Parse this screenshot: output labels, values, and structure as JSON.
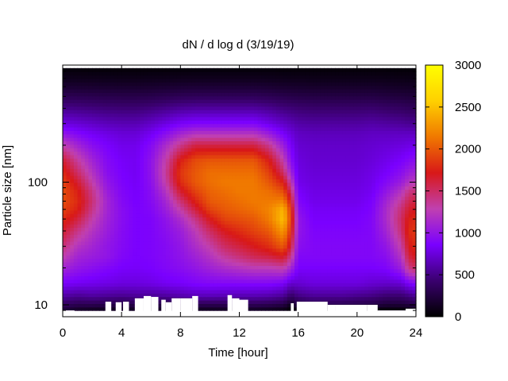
{
  "chart_data": {
    "type": "heatmap",
    "title": "dN / d log d (3/19/19)",
    "xlabel": "Time [hour]",
    "ylabel": "Particle size [nm]",
    "xlim": [
      0,
      24
    ],
    "ylim": [
      8,
      900
    ],
    "y_scale": "log",
    "grid": false,
    "x_ticks": [
      0,
      4,
      8,
      12,
      16,
      20,
      24
    ],
    "x_tick_labels": [
      "0",
      "4",
      "8",
      "12",
      "16",
      "20",
      "24"
    ],
    "y_ticks": [
      10,
      100
    ],
    "y_tick_labels": [
      "10",
      "100"
    ],
    "colorbar": {
      "range": [
        0,
        3000
      ],
      "ticks": [
        0,
        500,
        1000,
        1500,
        2000,
        2500,
        3000
      ],
      "tick_labels": [
        "0",
        "500",
        "1000",
        "1500",
        "2000",
        "2500",
        "3000"
      ],
      "colormap": [
        "#000000",
        "#3a006e",
        "#7a00ff",
        "#c040b0",
        "#d81818",
        "#f07800",
        "#ffd000",
        "#ffff00"
      ]
    },
    "color_background": "#ffffff",
    "x": [
      0,
      1,
      2,
      3,
      4,
      5,
      6,
      7,
      8,
      9,
      10,
      11,
      12,
      13,
      14,
      15,
      15.5,
      16,
      17,
      18,
      19,
      20,
      21,
      22,
      23,
      23.5,
      24
    ],
    "diameters": [
      9,
      10,
      12,
      15,
      20,
      25,
      30,
      40,
      50,
      60,
      70,
      85,
      100,
      120,
      150,
      200,
      250,
      300,
      400,
      500,
      600,
      700,
      800,
      850
    ],
    "values": [
      [
        200,
        120,
        90,
        80,
        80,
        100,
        120,
        100,
        90,
        80,
        80,
        90,
        100,
        100,
        80,
        50,
        0,
        0,
        60,
        60,
        80,
        80,
        0,
        0,
        0,
        0,
        0
      ],
      [
        350,
        300,
        300,
        280,
        260,
        280,
        260,
        250,
        280,
        300,
        300,
        300,
        300,
        320,
        300,
        250,
        120,
        250,
        300,
        300,
        300,
        280,
        250,
        200,
        200,
        230,
        260
      ],
      [
        600,
        550,
        580,
        560,
        540,
        560,
        560,
        580,
        620,
        660,
        660,
        650,
        640,
        640,
        620,
        560,
        400,
        500,
        560,
        560,
        560,
        530,
        500,
        440,
        440,
        500,
        560
      ],
      [
        850,
        820,
        800,
        780,
        760,
        760,
        780,
        820,
        840,
        880,
        900,
        900,
        900,
        900,
        900,
        850,
        700,
        720,
        760,
        760,
        760,
        760,
        720,
        700,
        720,
        850,
        900
      ],
      [
        1100,
        1000,
        950,
        900,
        850,
        840,
        860,
        900,
        940,
        1000,
        1080,
        1150,
        1200,
        1250,
        1250,
        1300,
        1100,
        850,
        850,
        850,
        850,
        850,
        850,
        880,
        1050,
        1400,
        1500
      ],
      [
        1300,
        1100,
        1050,
        1000,
        900,
        860,
        880,
        920,
        980,
        1080,
        1200,
        1350,
        1450,
        1550,
        1600,
        1700,
        1400,
        900,
        900,
        900,
        900,
        900,
        900,
        950,
        1200,
        1600,
        1700
      ],
      [
        1450,
        1200,
        1100,
        1000,
        920,
        860,
        880,
        920,
        1000,
        1150,
        1300,
        1500,
        1600,
        1700,
        1800,
        2000,
        1600,
        950,
        900,
        900,
        900,
        900,
        900,
        1000,
        1300,
        1700,
        1800
      ],
      [
        1650,
        1400,
        1200,
        1050,
        930,
        860,
        880,
        950,
        1050,
        1250,
        1500,
        1700,
        1800,
        1900,
        2000,
        2300,
        1800,
        1000,
        880,
        880,
        880,
        880,
        900,
        1100,
        1450,
        1800,
        1850
      ],
      [
        1800,
        1600,
        1300,
        1080,
        940,
        860,
        880,
        980,
        1150,
        1400,
        1700,
        1900,
        1950,
        2000,
        2150,
        2500,
        1900,
        1000,
        850,
        850,
        850,
        850,
        900,
        1150,
        1500,
        1750,
        1800
      ],
      [
        1900,
        1750,
        1400,
        1100,
        940,
        860,
        900,
        1050,
        1300,
        1600,
        1900,
        2000,
        2050,
        2100,
        2200,
        2450,
        1850,
        950,
        830,
        830,
        830,
        830,
        880,
        1150,
        1450,
        1650,
        1700
      ],
      [
        1950,
        1800,
        1450,
        1100,
        920,
        850,
        920,
        1100,
        1450,
        1750,
        2000,
        2050,
        2100,
        2150,
        2150,
        2200,
        1700,
        900,
        800,
        800,
        800,
        800,
        860,
        1100,
        1350,
        1550,
        1600
      ],
      [
        1950,
        1750,
        1400,
        1050,
        900,
        840,
        940,
        1200,
        1650,
        1900,
        2050,
        2100,
        2150,
        2150,
        2100,
        1950,
        1500,
        850,
        780,
        780,
        780,
        780,
        820,
        1000,
        1200,
        1400,
        1450
      ],
      [
        1900,
        1650,
        1300,
        1000,
        880,
        830,
        960,
        1300,
        1800,
        2000,
        2100,
        2150,
        2150,
        2150,
        2000,
        1750,
        1300,
        800,
        760,
        760,
        760,
        760,
        800,
        920,
        1050,
        1200,
        1250
      ],
      [
        1800,
        1500,
        1200,
        950,
        860,
        820,
        980,
        1350,
        1850,
        2000,
        2100,
        2100,
        2100,
        2100,
        1900,
        1500,
        1100,
        780,
        740,
        740,
        740,
        740,
        780,
        850,
        950,
        1050,
        1100
      ],
      [
        1650,
        1350,
        1100,
        920,
        840,
        820,
        980,
        1300,
        1750,
        1950,
        2000,
        2000,
        2000,
        2000,
        1750,
        1300,
        950,
        760,
        720,
        720,
        720,
        720,
        750,
        800,
        860,
        920,
        960
      ],
      [
        1300,
        1100,
        950,
        860,
        800,
        800,
        920,
        1150,
        1400,
        1600,
        1600,
        1600,
        1600,
        1600,
        1400,
        1050,
        850,
        720,
        700,
        700,
        700,
        700,
        720,
        740,
        760,
        780,
        800
      ],
      [
        1000,
        900,
        830,
        780,
        740,
        740,
        820,
        950,
        1100,
        1200,
        1200,
        1200,
        1200,
        1200,
        1050,
        850,
        760,
        680,
        660,
        660,
        660,
        660,
        680,
        680,
        680,
        680,
        680
      ],
      [
        780,
        740,
        700,
        660,
        640,
        640,
        700,
        780,
        860,
        900,
        900,
        900,
        900,
        900,
        800,
        700,
        650,
        600,
        580,
        580,
        580,
        580,
        600,
        580,
        560,
        540,
        540
      ],
      [
        520,
        500,
        480,
        460,
        450,
        450,
        480,
        520,
        560,
        580,
        580,
        580,
        580,
        580,
        540,
        480,
        460,
        440,
        420,
        420,
        420,
        420,
        430,
        400,
        380,
        360,
        360
      ],
      [
        330,
        320,
        310,
        300,
        290,
        290,
        300,
        320,
        340,
        350,
        350,
        350,
        350,
        350,
        330,
        300,
        290,
        280,
        270,
        270,
        270,
        270,
        270,
        250,
        240,
        230,
        230
      ],
      [
        200,
        195,
        190,
        185,
        180,
        180,
        185,
        195,
        205,
        210,
        210,
        210,
        210,
        210,
        200,
        185,
        180,
        175,
        170,
        170,
        170,
        170,
        170,
        160,
        150,
        145,
        145
      ],
      [
        110,
        108,
        106,
        104,
        102,
        102,
        104,
        108,
        112,
        114,
        114,
        114,
        114,
        114,
        110,
        104,
        102,
        100,
        98,
        98,
        98,
        98,
        98,
        92,
        88,
        85,
        85
      ],
      [
        60,
        58,
        56,
        55,
        54,
        54,
        55,
        57,
        60,
        62,
        62,
        62,
        62,
        62,
        60,
        56,
        55,
        54,
        53,
        53,
        53,
        53,
        53,
        50,
        48,
        46,
        46
      ],
      [
        30,
        30,
        30,
        30,
        30,
        30,
        30,
        30,
        30,
        30,
        30,
        30,
        30,
        30,
        30,
        30,
        30,
        30,
        30,
        30,
        30,
        30,
        30,
        30,
        30,
        30,
        30
      ]
    ],
    "gaps": [
      {
        "x": [
          0,
          0.8
        ],
        "d_min": 9.0
      },
      {
        "x": [
          2.9,
          3.3
        ],
        "d_min": 10.6
      },
      {
        "x": [
          3.6,
          4.0
        ],
        "d_min": 10.5
      },
      {
        "x": [
          4.1,
          4.5
        ],
        "d_min": 10.6
      },
      {
        "x": [
          4.9,
          5.5
        ],
        "d_min": 11.3
      },
      {
        "x": [
          5.5,
          6.0
        ],
        "d_min": 11.8
      },
      {
        "x": [
          6.0,
          6.5
        ],
        "d_min": 11.6
      },
      {
        "x": [
          6.7,
          7.0
        ],
        "d_min": 11.0
      },
      {
        "x": [
          7.0,
          7.4
        ],
        "d_min": 10.5
      },
      {
        "x": [
          7.4,
          8.0
        ],
        "d_min": 11.3
      },
      {
        "x": [
          8.0,
          8.8
        ],
        "d_min": 11.3
      },
      {
        "x": [
          8.8,
          9.2
        ],
        "d_min": 11.8
      },
      {
        "x": [
          11.2,
          11.5
        ],
        "d_min": 12.0
      },
      {
        "x": [
          11.5,
          12.0
        ],
        "d_min": 11.3
      },
      {
        "x": [
          12.0,
          12.6
        ],
        "d_min": 11.0
      },
      {
        "x": [
          15.5,
          15.7
        ],
        "d_min": 10.3
      },
      {
        "x": [
          15.9,
          18.0
        ],
        "d_min": 10.6
      },
      {
        "x": [
          18.0,
          18.5
        ],
        "d_min": 10.0
      },
      {
        "x": [
          18.5,
          20.7
        ],
        "d_min": 10.0
      },
      {
        "x": [
          20.7,
          21.4
        ],
        "d_min": 10.0
      },
      {
        "x": [
          21.4,
          23.3
        ],
        "d_min": 9.0
      },
      {
        "x": [
          23.3,
          24.0
        ],
        "d_min": 9.3
      }
    ]
  }
}
